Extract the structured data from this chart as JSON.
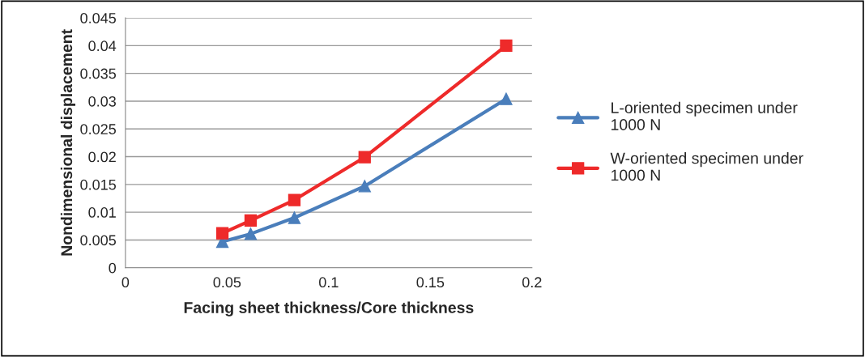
{
  "chart_data": {
    "type": "line",
    "xlabel": "Facing sheet thickness/Core thickness",
    "ylabel": "Nondimensional displacement",
    "xlim": [
      0,
      0.2
    ],
    "xticks": [
      0,
      0.05,
      0.1,
      0.15,
      0.2
    ],
    "ylim": [
      0,
      0.045
    ],
    "yticks": [
      0,
      0.005,
      0.01,
      0.015,
      0.02,
      0.025,
      0.03,
      0.035,
      0.04,
      0.045
    ],
    "grid": "y",
    "legend": "right",
    "series": [
      {
        "name": "L-oriented specimen under 1000 N",
        "color": "#4a7ebb",
        "marker": "triangle",
        "x": [
          0.0477,
          0.0616,
          0.0831,
          0.1177,
          0.1873
        ],
        "values": [
          0.0047,
          0.0061,
          0.009,
          0.0147,
          0.0304
        ]
      },
      {
        "name": "W-oriented specimen under 1000 N",
        "color": "#ee2a2a",
        "marker": "square",
        "x": [
          0.0477,
          0.0616,
          0.0831,
          0.1177,
          0.1873
        ],
        "values": [
          0.0062,
          0.0085,
          0.0122,
          0.0199,
          0.04
        ]
      }
    ]
  }
}
